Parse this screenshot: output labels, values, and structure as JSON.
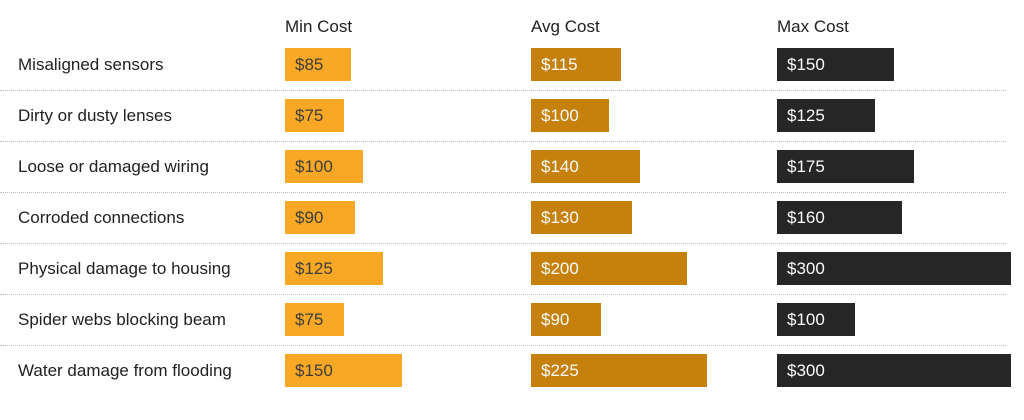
{
  "chart_data": {
    "type": "bar",
    "title": "",
    "orientation": "horizontal",
    "categories": [
      "Misaligned sensors",
      "Dirty or dusty lenses",
      "Loose or damaged wiring",
      "Corroded connections",
      "Physical damage to housing",
      "Spider webs blocking beam",
      "Water damage from flooding"
    ],
    "series": [
      {
        "name": "Min Cost",
        "values": [
          85,
          75,
          100,
          90,
          125,
          75,
          150
        ]
      },
      {
        "name": "Avg Cost",
        "values": [
          115,
          100,
          140,
          130,
          200,
          90,
          225
        ]
      },
      {
        "name": "Max Cost",
        "values": [
          150,
          125,
          175,
          160,
          300,
          100,
          300
        ]
      }
    ],
    "value_prefix": "$",
    "xlim": [
      0,
      300
    ],
    "grid": "dotted horizontal separators between rows",
    "legend_position": "column headers above each bar column",
    "value_labels": "inside bar, left aligned"
  },
  "colors": {
    "bg": "#FFFFFF",
    "min_bar": "#F9A825",
    "avg_bar": "#C6810C",
    "max_bar": "#262626",
    "min_bar_text": "#3D3D3D",
    "avg_bar_text": "#FAFAFA",
    "max_bar_text": "#FAFAFA",
    "row_label": "#212121",
    "header": "#212121",
    "separator": "#BDBDBD"
  }
}
